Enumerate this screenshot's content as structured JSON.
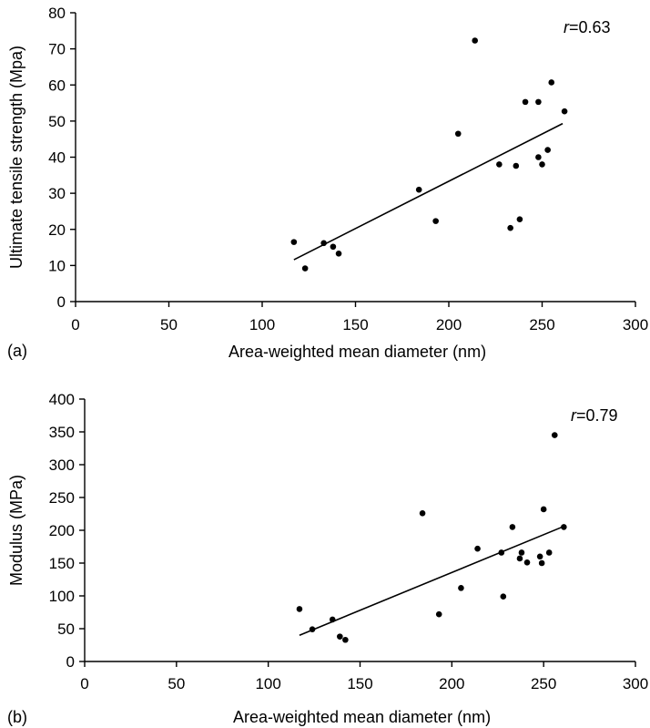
{
  "chart_data": [
    {
      "type": "scatter",
      "panel_label": "(a)",
      "xlabel": "Area-weighted mean diameter (nm)",
      "ylabel": "Ultimate tensile strength (Mpa)",
      "xlim": [
        0,
        300
      ],
      "ylim": [
        0,
        80
      ],
      "x_ticks": [
        "0",
        "50",
        "100",
        "150",
        "200",
        "250",
        "300"
      ],
      "y_ticks": [
        "0",
        "10",
        "20",
        "30",
        "40",
        "50",
        "60",
        "70",
        "80"
      ],
      "annotation": {
        "italic": "r",
        "text": "=0.63"
      },
      "grid": false,
      "points": [
        {
          "x": 117,
          "y": 16.5
        },
        {
          "x": 123,
          "y": 9.2
        },
        {
          "x": 133,
          "y": 16.2
        },
        {
          "x": 138,
          "y": 15.2
        },
        {
          "x": 141,
          "y": 13.3
        },
        {
          "x": 184,
          "y": 31
        },
        {
          "x": 193,
          "y": 22.3
        },
        {
          "x": 205,
          "y": 46.5
        },
        {
          "x": 214,
          "y": 72.3
        },
        {
          "x": 227,
          "y": 38
        },
        {
          "x": 233,
          "y": 20.4
        },
        {
          "x": 236,
          "y": 37.6
        },
        {
          "x": 238,
          "y": 22.8
        },
        {
          "x": 241,
          "y": 55.3
        },
        {
          "x": 248,
          "y": 55.3
        },
        {
          "x": 248,
          "y": 40
        },
        {
          "x": 250,
          "y": 38
        },
        {
          "x": 253,
          "y": 42
        },
        {
          "x": 255,
          "y": 60.7
        },
        {
          "x": 262,
          "y": 52.7
        }
      ],
      "fit_line": {
        "x": [
          117,
          261
        ],
        "y": [
          11.6,
          49.3
        ]
      }
    },
    {
      "type": "scatter",
      "panel_label": "(b)",
      "xlabel": "Area-weighted mean diameter (nm)",
      "ylabel": "Modulus (MPa)",
      "xlim": [
        0,
        300
      ],
      "ylim": [
        0,
        400
      ],
      "x_ticks": [
        "0",
        "50",
        "100",
        "150",
        "200",
        "250",
        "300"
      ],
      "y_ticks": [
        "0",
        "50",
        "100",
        "150",
        "200",
        "250",
        "300",
        "350",
        "400"
      ],
      "annotation": {
        "italic": "r",
        "text": "=0.79"
      },
      "grid": false,
      "points": [
        {
          "x": 117,
          "y": 80
        },
        {
          "x": 124,
          "y": 49
        },
        {
          "x": 135,
          "y": 64
        },
        {
          "x": 139,
          "y": 38
        },
        {
          "x": 142,
          "y": 33
        },
        {
          "x": 184,
          "y": 226
        },
        {
          "x": 193,
          "y": 72
        },
        {
          "x": 205,
          "y": 112
        },
        {
          "x": 214,
          "y": 172
        },
        {
          "x": 227,
          "y": 166
        },
        {
          "x": 228,
          "y": 99
        },
        {
          "x": 233,
          "y": 205
        },
        {
          "x": 237,
          "y": 157
        },
        {
          "x": 238,
          "y": 166
        },
        {
          "x": 241,
          "y": 151
        },
        {
          "x": 248,
          "y": 160
        },
        {
          "x": 249,
          "y": 150
        },
        {
          "x": 250,
          "y": 232
        },
        {
          "x": 253,
          "y": 166
        },
        {
          "x": 256,
          "y": 345
        },
        {
          "x": 261,
          "y": 205
        }
      ],
      "fit_line": {
        "x": [
          117,
          261
        ],
        "y": [
          40,
          206
        ]
      }
    }
  ]
}
